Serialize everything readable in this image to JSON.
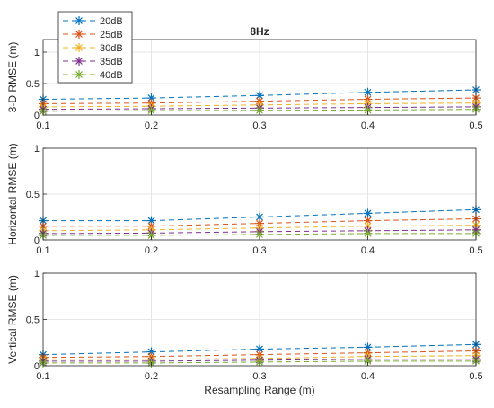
{
  "chart_data": [
    {
      "type": "line",
      "title": "8Hz",
      "xlabel": "",
      "ylabel": "3-D RMSE (m)",
      "x": [
        0.1,
        0.2,
        0.3,
        0.4,
        0.5
      ],
      "xlim": [
        0.1,
        0.5
      ],
      "ylim": [
        0,
        1.2
      ],
      "x_ticks": [
        "0.1",
        "0.2",
        "0.3",
        "0.4",
        "0.5"
      ],
      "y_ticks": [
        "0",
        "0.5",
        "1"
      ],
      "grid": true,
      "legend": "top-left",
      "series": [
        {
          "name": "20dB",
          "color": "#0072BD",
          "values": [
            0.25,
            0.27,
            0.31,
            0.36,
            0.4
          ]
        },
        {
          "name": "25dB",
          "color": "#D95319",
          "values": [
            0.18,
            0.19,
            0.22,
            0.25,
            0.27
          ]
        },
        {
          "name": "30dB",
          "color": "#EDB120",
          "values": [
            0.13,
            0.14,
            0.16,
            0.18,
            0.19
          ]
        },
        {
          "name": "35dB",
          "color": "#7E2F8E",
          "values": [
            0.09,
            0.1,
            0.11,
            0.12,
            0.13
          ]
        },
        {
          "name": "40dB",
          "color": "#77AC30",
          "values": [
            0.06,
            0.07,
            0.075,
            0.08,
            0.09
          ]
        }
      ]
    },
    {
      "type": "line",
      "title": "",
      "xlabel": "",
      "ylabel": "Horizontal RMSE (m)",
      "x": [
        0.1,
        0.2,
        0.3,
        0.4,
        0.5
      ],
      "xlim": [
        0.1,
        0.5
      ],
      "ylim": [
        0,
        1
      ],
      "x_ticks": [
        "0.1",
        "0.2",
        "0.3",
        "0.4",
        "0.5"
      ],
      "y_ticks": [
        "0",
        "0.5",
        "1"
      ],
      "grid": true,
      "series": [
        {
          "name": "20dB",
          "color": "#0072BD",
          "values": [
            0.21,
            0.21,
            0.25,
            0.29,
            0.33
          ]
        },
        {
          "name": "25dB",
          "color": "#D95319",
          "values": [
            0.15,
            0.15,
            0.18,
            0.21,
            0.23
          ]
        },
        {
          "name": "30dB",
          "color": "#EDB120",
          "values": [
            0.1,
            0.11,
            0.13,
            0.15,
            0.16
          ]
        },
        {
          "name": "35dB",
          "color": "#7E2F8E",
          "values": [
            0.07,
            0.075,
            0.09,
            0.1,
            0.11
          ]
        },
        {
          "name": "40dB",
          "color": "#77AC30",
          "values": [
            0.05,
            0.05,
            0.06,
            0.07,
            0.07
          ]
        }
      ]
    },
    {
      "type": "line",
      "title": "",
      "xlabel": "Resampling Range (m)",
      "ylabel": "Vertical RMSE (m)",
      "x": [
        0.1,
        0.2,
        0.3,
        0.4,
        0.5
      ],
      "xlim": [
        0.1,
        0.5
      ],
      "ylim": [
        0,
        1
      ],
      "x_ticks": [
        "0.1",
        "0.2",
        "0.3",
        "0.4",
        "0.5"
      ],
      "y_ticks": [
        "0",
        "0.5",
        "1"
      ],
      "grid": true,
      "series": [
        {
          "name": "20dB",
          "color": "#0072BD",
          "values": [
            0.12,
            0.15,
            0.18,
            0.2,
            0.23
          ]
        },
        {
          "name": "25dB",
          "color": "#D95319",
          "values": [
            0.09,
            0.1,
            0.12,
            0.14,
            0.16
          ]
        },
        {
          "name": "30dB",
          "color": "#EDB120",
          "values": [
            0.07,
            0.07,
            0.08,
            0.1,
            0.11
          ]
        },
        {
          "name": "35dB",
          "color": "#7E2F8E",
          "values": [
            0.05,
            0.05,
            0.06,
            0.07,
            0.07
          ]
        },
        {
          "name": "40dB",
          "color": "#77AC30",
          "values": [
            0.03,
            0.03,
            0.04,
            0.05,
            0.05
          ]
        }
      ]
    }
  ]
}
